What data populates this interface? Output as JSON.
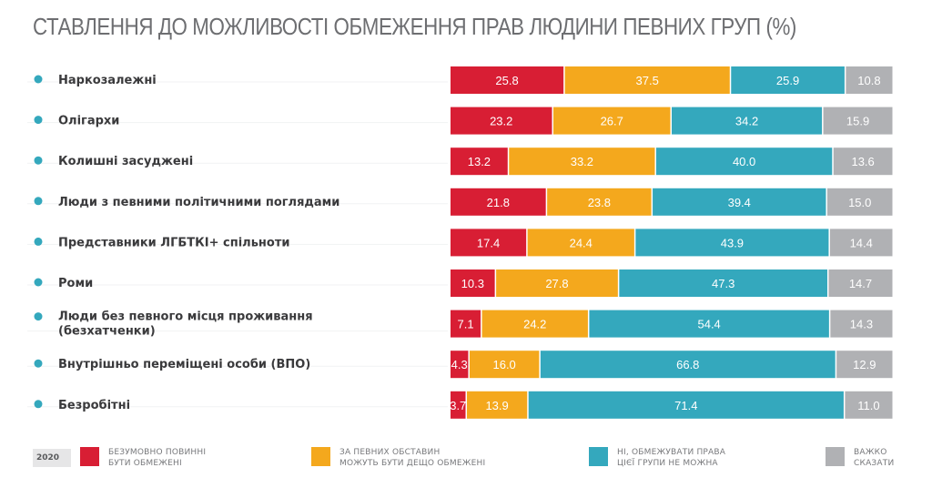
{
  "chart_data": {
    "type": "bar",
    "orientation": "horizontal",
    "stacked": true,
    "title": "СТАВЛЕННЯ ДО МОЖЛИВОСТІ ОБМЕЖЕННЯ ПРАВ ЛЮДИНИ ПЕВНИХ ГРУП (%)",
    "xlabel": "",
    "ylabel": "",
    "xlim": [
      0,
      100
    ],
    "grid": false,
    "legend_position": "bottom",
    "year": "2020",
    "categories": [
      [
        "Наркозалежні"
      ],
      [
        "Олігархи"
      ],
      [
        "Колишні засуджені"
      ],
      [
        "Люди з певними політичними поглядами"
      ],
      [
        "Представники ЛГБТКІ+ спільноти"
      ],
      [
        "Роми"
      ],
      [
        "Люди без певного місця проживання",
        "(безхатченки)"
      ],
      [
        "Внутрішньо переміщені особи (ВПО)"
      ],
      [
        "Безробітні"
      ]
    ],
    "series": [
      {
        "name": "БЕЗУМОВНО ПОВИННІ БУТИ ОБМЕЖЕНІ",
        "legend_lines": [
          "БЕЗУМОВНО ПОВИННІ",
          "БУТИ ОБМЕЖЕНІ"
        ],
        "color": "#d81e34",
        "values": [
          25.8,
          23.2,
          13.2,
          21.8,
          17.4,
          10.3,
          7.1,
          4.3,
          3.7
        ]
      },
      {
        "name": "ЗА ПЕВНИХ ОБСТАВИН МОЖУТЬ БУТИ ДЕЩО ОБМЕЖЕНІ",
        "legend_lines": [
          "ЗА ПЕВНИХ ОБСТАВИН",
          "МОЖУТЬ БУТИ ДЕЩО ОБМЕЖЕНІ"
        ],
        "color": "#f4a81d",
        "values": [
          37.5,
          26.7,
          33.2,
          23.8,
          24.4,
          27.8,
          24.2,
          16.0,
          13.9
        ]
      },
      {
        "name": "НІ, ОБМЕЖУВАТИ ПРАВА ЦІЄЇ ГРУПИ НЕ МОЖНА",
        "legend_lines": [
          "НІ, ОБМЕЖУВАТИ ПРАВА",
          "ЦІЄЇ ГРУПИ НЕ МОЖНА"
        ],
        "color": "#34a8bd",
        "values": [
          25.9,
          34.2,
          40.0,
          39.4,
          43.9,
          47.3,
          54.4,
          66.8,
          71.4
        ]
      },
      {
        "name": "ВАЖКО СКАЗАТИ",
        "legend_lines": [
          "ВАЖКО",
          "СКАЗАТИ"
        ],
        "color": "#b0b1b4",
        "values": [
          10.8,
          15.9,
          13.6,
          15.0,
          14.4,
          14.7,
          14.3,
          12.9,
          11.0
        ]
      }
    ]
  },
  "colors": {
    "bullet": "#34a8bd",
    "title": "#6d6e71"
  }
}
